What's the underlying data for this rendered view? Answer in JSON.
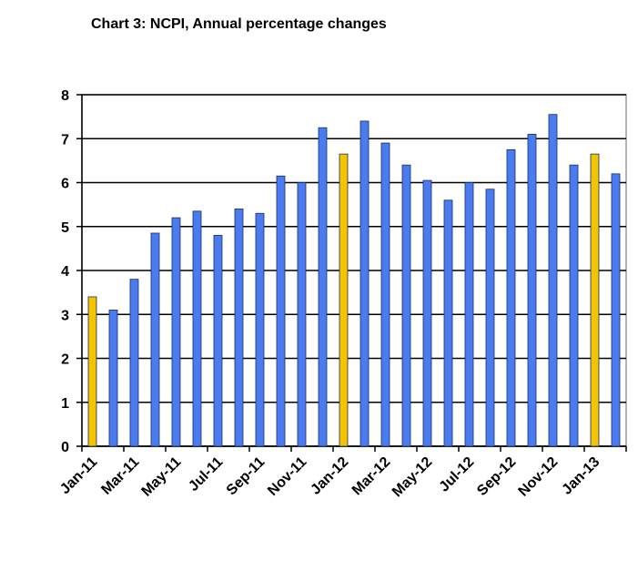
{
  "chart_data": {
    "type": "bar",
    "title": "Chart 3: NCPI, Annual percentage changes",
    "categories": [
      "Jan-11",
      null,
      "Mar-11",
      null,
      "May-11",
      null,
      "Jul-11",
      null,
      "Sep-11",
      null,
      "Nov-11",
      null,
      "Jan-12",
      null,
      "Mar-12",
      null,
      "May-12",
      null,
      "Jul-12",
      null,
      "Sep-12",
      null,
      "Nov-12",
      null,
      "Jan-13",
      null
    ],
    "series": [
      {
        "values": [
          3.4,
          3.1,
          3.8,
          4.85,
          5.2,
          5.35,
          4.8,
          5.4,
          5.3,
          6.15,
          6.0,
          7.25,
          6.65,
          7.4,
          6.9,
          6.4,
          6.05,
          5.6,
          6.0,
          5.85,
          6.75,
          7.1,
          7.55,
          6.4,
          6.65,
          6.2
        ],
        "colors": [
          "#f5c400",
          "#4a7cf0",
          "#4a7cf0",
          "#4a7cf0",
          "#4a7cf0",
          "#4a7cf0",
          "#4a7cf0",
          "#4a7cf0",
          "#4a7cf0",
          "#4a7cf0",
          "#4a7cf0",
          "#4a7cf0",
          "#f5c400",
          "#4a7cf0",
          "#4a7cf0",
          "#4a7cf0",
          "#4a7cf0",
          "#4a7cf0",
          "#4a7cf0",
          "#4a7cf0",
          "#4a7cf0",
          "#4a7cf0",
          "#4a7cf0",
          "#4a7cf0",
          "#f5c400",
          "#4a7cf0"
        ]
      }
    ],
    "ylim": [
      0,
      8
    ],
    "yticks": [
      0,
      1,
      2,
      3,
      4,
      5,
      6,
      7,
      8
    ],
    "grid": true
  }
}
